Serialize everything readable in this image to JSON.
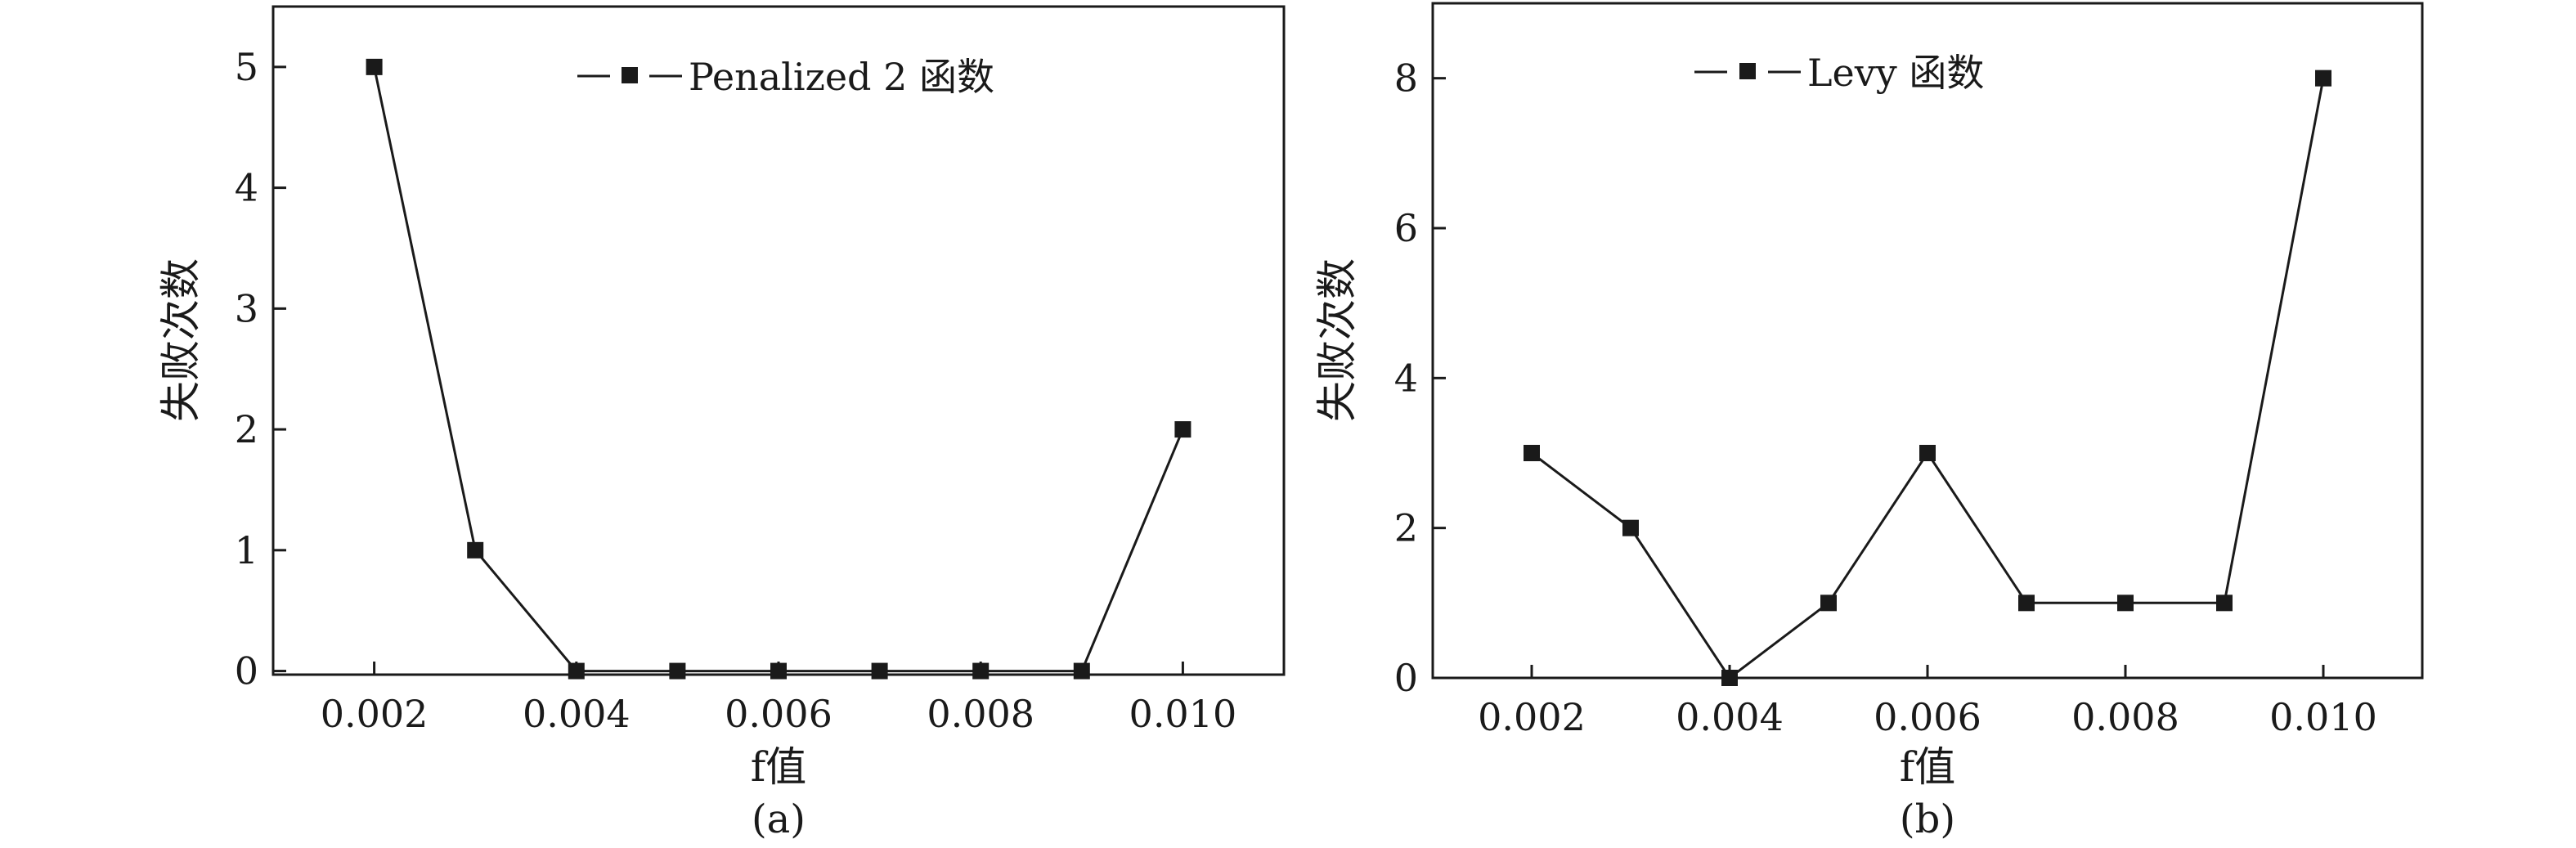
{
  "chart_data": [
    {
      "type": "line",
      "panel_label": "(a)",
      "xlabel": "f值",
      "ylabel": "失败次数",
      "xlim": [
        0.001,
        0.011
      ],
      "ylim": [
        -0.03,
        5.5
      ],
      "x_ticks": [
        {
          "value": 0.002,
          "label": "0.002"
        },
        {
          "value": 0.004,
          "label": "0.004"
        },
        {
          "value": 0.006,
          "label": "0.006"
        },
        {
          "value": 0.008,
          "label": "0.008"
        },
        {
          "value": 0.01,
          "label": "0.010"
        }
      ],
      "y_ticks": [
        {
          "value": 0,
          "label": "0"
        },
        {
          "value": 1,
          "label": "1"
        },
        {
          "value": 2,
          "label": "2"
        },
        {
          "value": 3,
          "label": "3"
        },
        {
          "value": 4,
          "label": "4"
        },
        {
          "value": 5,
          "label": "5"
        }
      ],
      "legend_position": "top-center",
      "grid": false,
      "series": [
        {
          "name": "Penalized 2 函数",
          "x": [
            0.002,
            0.003,
            0.004,
            0.005,
            0.006,
            0.007,
            0.008,
            0.009,
            0.01
          ],
          "y": [
            5,
            1,
            0,
            0,
            0,
            0,
            0,
            0,
            2
          ]
        }
      ]
    },
    {
      "type": "line",
      "panel_label": "(b)",
      "xlabel": "f值",
      "ylabel": "失败次数",
      "xlim": [
        0.001,
        0.011
      ],
      "ylim": [
        0,
        9
      ],
      "x_ticks": [
        {
          "value": 0.002,
          "label": "0.002"
        },
        {
          "value": 0.004,
          "label": "0.004"
        },
        {
          "value": 0.006,
          "label": "0.006"
        },
        {
          "value": 0.008,
          "label": "0.008"
        },
        {
          "value": 0.01,
          "label": "0.010"
        }
      ],
      "y_ticks": [
        {
          "value": 0,
          "label": "0"
        },
        {
          "value": 2,
          "label": "2"
        },
        {
          "value": 4,
          "label": "4"
        },
        {
          "value": 6,
          "label": "6"
        },
        {
          "value": 8,
          "label": "8"
        }
      ],
      "legend_position": "top-left",
      "grid": false,
      "series": [
        {
          "name": "Levy 函数",
          "x": [
            0.002,
            0.003,
            0.004,
            0.005,
            0.006,
            0.007,
            0.008,
            0.009,
            0.01
          ],
          "y": [
            3,
            2,
            0,
            1,
            3,
            1,
            1,
            1,
            8
          ]
        }
      ]
    }
  ]
}
